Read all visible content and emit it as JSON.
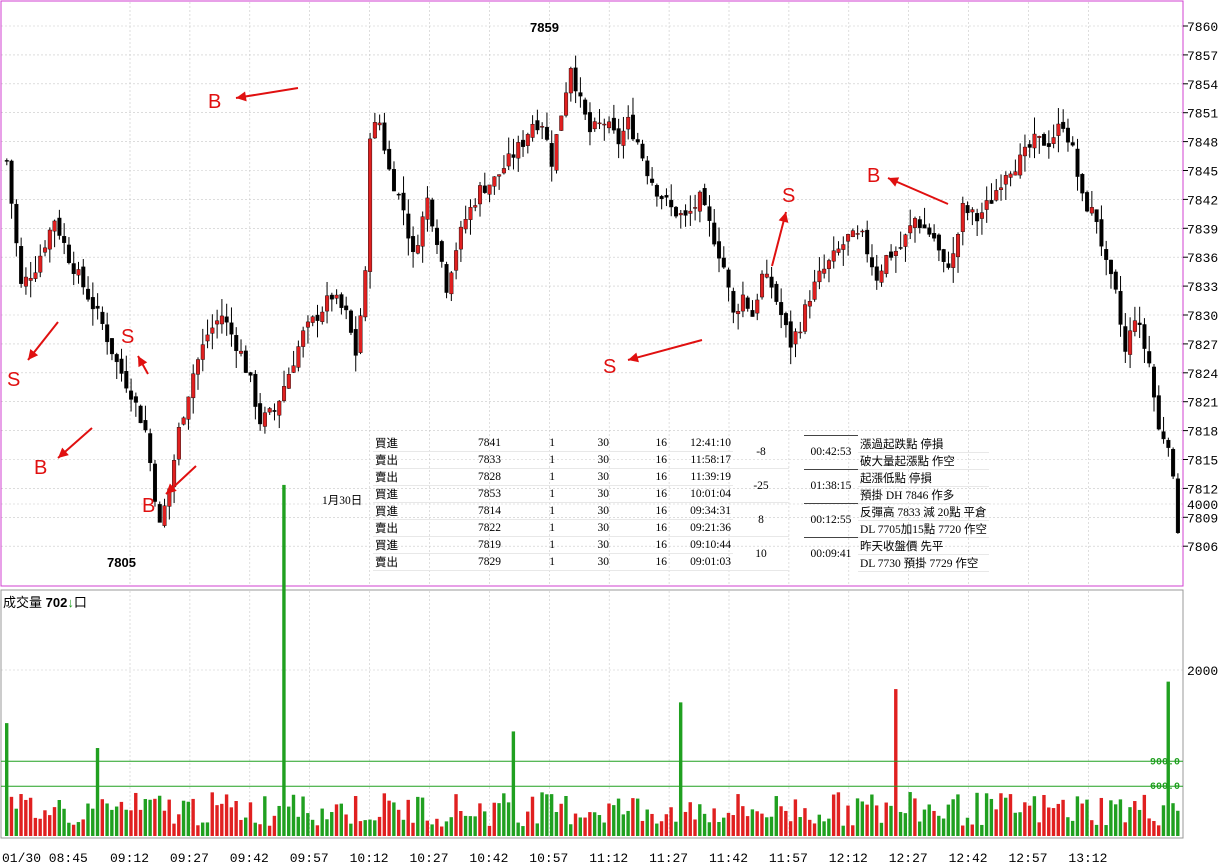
{
  "price_axis": {
    "ticks": [
      7860,
      7857,
      7854,
      7851,
      7848,
      7845,
      7842,
      7839,
      7836,
      7833,
      7830,
      7827,
      7824,
      7821,
      7818,
      7815,
      7812,
      7809,
      7806
    ],
    "min": 7804,
    "max": 7861
  },
  "volume_axis": {
    "ticks": [
      4000,
      2000
    ],
    "max": 5300,
    "ref_labels": [
      "900.0",
      "600.0"
    ]
  },
  "time_axis": {
    "labels": [
      "01/30 08:45",
      "09:12",
      "09:27",
      "09:42",
      "09:57",
      "10:12",
      "10:27",
      "10:42",
      "10:57",
      "11:12",
      "11:27",
      "11:42",
      "11:57",
      "12:12",
      "12:27",
      "12:42",
      "12:57",
      "13:12"
    ]
  },
  "peaks": {
    "high": "7859",
    "low": "7805"
  },
  "volume_title": {
    "label": "成交量",
    "value": "702",
    "arrow": "↓",
    "unit": "口"
  },
  "date_label": "1月30日",
  "trades": [
    {
      "side": "買進",
      "price": "7841",
      "qty": "1",
      "a": "30",
      "b": "16",
      "time": "12:41:10"
    },
    {
      "side": "賣出",
      "price": "7833",
      "qty": "1",
      "a": "30",
      "b": "16",
      "time": "11:58:17"
    },
    {
      "side": "賣出",
      "price": "7828",
      "qty": "1",
      "a": "30",
      "b": "16",
      "time": "11:39:19"
    },
    {
      "side": "買進",
      "price": "7853",
      "qty": "1",
      "a": "30",
      "b": "16",
      "time": "10:01:04"
    },
    {
      "side": "買進",
      "price": "7814",
      "qty": "1",
      "a": "30",
      "b": "16",
      "time": "09:34:31"
    },
    {
      "side": "賣出",
      "price": "7822",
      "qty": "1",
      "a": "30",
      "b": "16",
      "time": "09:21:36"
    },
    {
      "side": "買進",
      "price": "7819",
      "qty": "1",
      "a": "30",
      "b": "16",
      "time": "09:10:44"
    },
    {
      "side": "賣出",
      "price": "7829",
      "qty": "1",
      "a": "30",
      "b": "16",
      "time": "09:01:03"
    }
  ],
  "diffs": [
    "-8",
    "-25",
    "8",
    "10"
  ],
  "notes": [
    {
      "duration": "00:42:53",
      "line1": "漲過起跌點  停損",
      "line2": "破大量起漲點  作空"
    },
    {
      "duration": "01:38:15",
      "line1": "起漲低點  停損",
      "line2": "預掛 DH 7846 作多"
    },
    {
      "duration": "00:12:55",
      "line1": "反彈高 7833  減 20點  平倉",
      "line2": "DL 7705加15點  7720  作空"
    },
    {
      "duration": "00:09:41",
      "line1": "昨天收盤價  先平",
      "line2": "DL 7730  預掛  7729 作空"
    }
  ],
  "annotations": [
    {
      "letter": "S"
    },
    {
      "letter": "B"
    },
    {
      "letter": "S"
    },
    {
      "letter": "B"
    },
    {
      "letter": "B"
    },
    {
      "letter": "S"
    },
    {
      "letter": "S"
    },
    {
      "letter": "B"
    }
  ],
  "colors": {
    "up": "#e02020",
    "down": "#000000",
    "vol_up": "#e02020",
    "vol_down": "#20a020",
    "frame": "#d040d0",
    "grid": "#c8c8c8",
    "arrow": "#e01010",
    "ref_line": "#20a020"
  },
  "chart_data": [
    {
      "type": "candlestick",
      "title": "",
      "xlabel": "",
      "ylabel": "",
      "ylim": [
        7804,
        7861
      ],
      "session_start": "08:45",
      "session_end": "13:20",
      "close_path": [
        [
          0,
          7846
        ],
        [
          3,
          7833
        ],
        [
          6,
          7835
        ],
        [
          10,
          7840
        ],
        [
          13,
          7836
        ],
        [
          17,
          7832
        ],
        [
          20,
          7829
        ],
        [
          23,
          7825
        ],
        [
          26,
          7822
        ],
        [
          29,
          7818
        ],
        [
          32,
          7808
        ],
        [
          34,
          7812
        ],
        [
          36,
          7818
        ],
        [
          39,
          7824
        ],
        [
          42,
          7828
        ],
        [
          45,
          7830
        ],
        [
          49,
          7826
        ],
        [
          51,
          7823
        ],
        [
          53,
          7819
        ],
        [
          56,
          7820
        ],
        [
          59,
          7824
        ],
        [
          62,
          7828
        ],
        [
          65,
          7830
        ],
        [
          68,
          7832
        ],
        [
          71,
          7830
        ],
        [
          73,
          7826
        ],
        [
          75,
          7834
        ],
        [
          76,
          7849
        ],
        [
          78,
          7850
        ],
        [
          80,
          7845
        ],
        [
          83,
          7841
        ],
        [
          85,
          7836
        ],
        [
          88,
          7842
        ],
        [
          90,
          7838
        ],
        [
          92,
          7833
        ],
        [
          94,
          7837
        ],
        [
          96,
          7840
        ],
        [
          99,
          7843
        ],
        [
          102,
          7844
        ],
        [
          105,
          7846
        ],
        [
          108,
          7848
        ],
        [
          110,
          7850
        ],
        [
          112,
          7850
        ],
        [
          114,
          7846
        ],
        [
          116,
          7851
        ],
        [
          118,
          7856
        ],
        [
          120,
          7852
        ],
        [
          122,
          7849
        ],
        [
          125,
          7850
        ],
        [
          128,
          7848
        ],
        [
          130,
          7850
        ],
        [
          132,
          7848
        ],
        [
          134,
          7845
        ],
        [
          136,
          7843
        ],
        [
          139,
          7841
        ],
        [
          142,
          7840
        ],
        [
          145,
          7842
        ],
        [
          148,
          7838
        ],
        [
          150,
          7835
        ],
        [
          152,
          7830
        ],
        [
          154,
          7832
        ],
        [
          156,
          7830
        ],
        [
          158,
          7834
        ],
        [
          160,
          7833
        ],
        [
          162,
          7830
        ],
        [
          164,
          7827
        ],
        [
          166,
          7829
        ],
        [
          168,
          7832
        ],
        [
          170,
          7834
        ],
        [
          173,
          7836
        ],
        [
          176,
          7838
        ],
        [
          179,
          7838
        ],
        [
          182,
          7834
        ],
        [
          184,
          7836
        ],
        [
          187,
          7837
        ],
        [
          190,
          7840
        ],
        [
          192,
          7839
        ],
        [
          194,
          7838
        ],
        [
          196,
          7835
        ],
        [
          198,
          7836
        ],
        [
          200,
          7841
        ],
        [
          203,
          7840
        ],
        [
          206,
          7842
        ],
        [
          209,
          7845
        ],
        [
          212,
          7846
        ],
        [
          215,
          7848
        ],
        [
          218,
          7848
        ],
        [
          221,
          7850
        ],
        [
          223,
          7847
        ],
        [
          225,
          7842
        ],
        [
          228,
          7840
        ],
        [
          230,
          7835
        ],
        [
          232,
          7832
        ],
        [
          234,
          7826
        ],
        [
          236,
          7830
        ],
        [
          239,
          7825
        ],
        [
          241,
          7818
        ],
        [
          243,
          7817
        ],
        [
          245,
          7808
        ]
      ],
      "volume_spikes": [
        [
          0,
          1360
        ],
        [
          58,
          4230
        ],
        [
          243,
          1860
        ],
        [
          186,
          1770
        ],
        [
          141,
          1610
        ],
        [
          106,
          1260
        ],
        [
          19,
          1060
        ]
      ],
      "volume_base": 380,
      "reference_lines": [
        900,
        600
      ]
    }
  ]
}
